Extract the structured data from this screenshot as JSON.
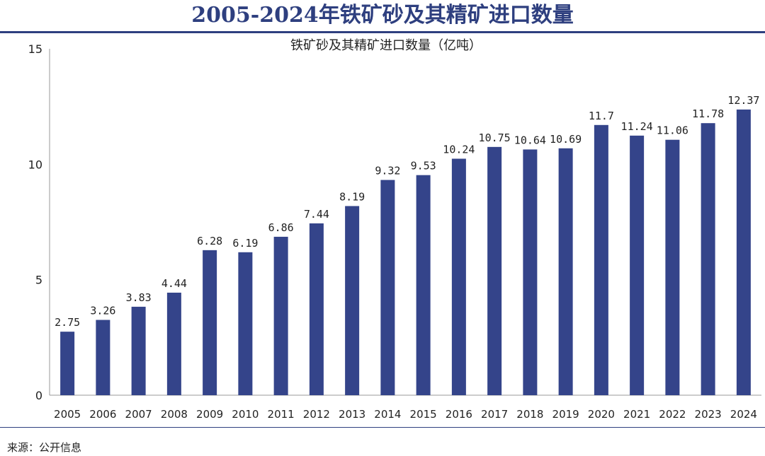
{
  "header": {
    "title": "2005-2024年铁矿砂及其精矿进口数量"
  },
  "source": "来源：公开信息",
  "colors": {
    "bar": "#34448a",
    "title": "#2e3f7f",
    "axis": "#999999"
  },
  "chart_data": {
    "type": "bar",
    "title": "铁矿砂及其精矿进口数量（亿吨）",
    "xlabel": "",
    "ylabel": "",
    "ylim": [
      0,
      15
    ],
    "yticks": [
      0,
      5,
      10,
      15
    ],
    "grid": false,
    "categories": [
      "2005",
      "2006",
      "2007",
      "2008",
      "2009",
      "2010",
      "2011",
      "2012",
      "2013",
      "2014",
      "2015",
      "2016",
      "2017",
      "2018",
      "2019",
      "2020",
      "2021",
      "2022",
      "2023",
      "2024"
    ],
    "values": [
      2.75,
      3.26,
      3.83,
      4.44,
      6.28,
      6.19,
      6.86,
      7.44,
      8.19,
      9.32,
      9.53,
      10.24,
      10.75,
      10.64,
      10.69,
      11.7,
      11.24,
      11.06,
      11.78,
      12.37
    ],
    "value_labels": [
      "2.75",
      "3.26",
      "3.83",
      "4.44",
      "6.28",
      "6.19",
      "6.86",
      "7.44",
      "8.19",
      "9.32",
      "9.53",
      "10.24",
      "10.75",
      "10.64",
      "10.69",
      "11.7",
      "11.24",
      "11.06",
      "11.78",
      "12.37"
    ]
  }
}
